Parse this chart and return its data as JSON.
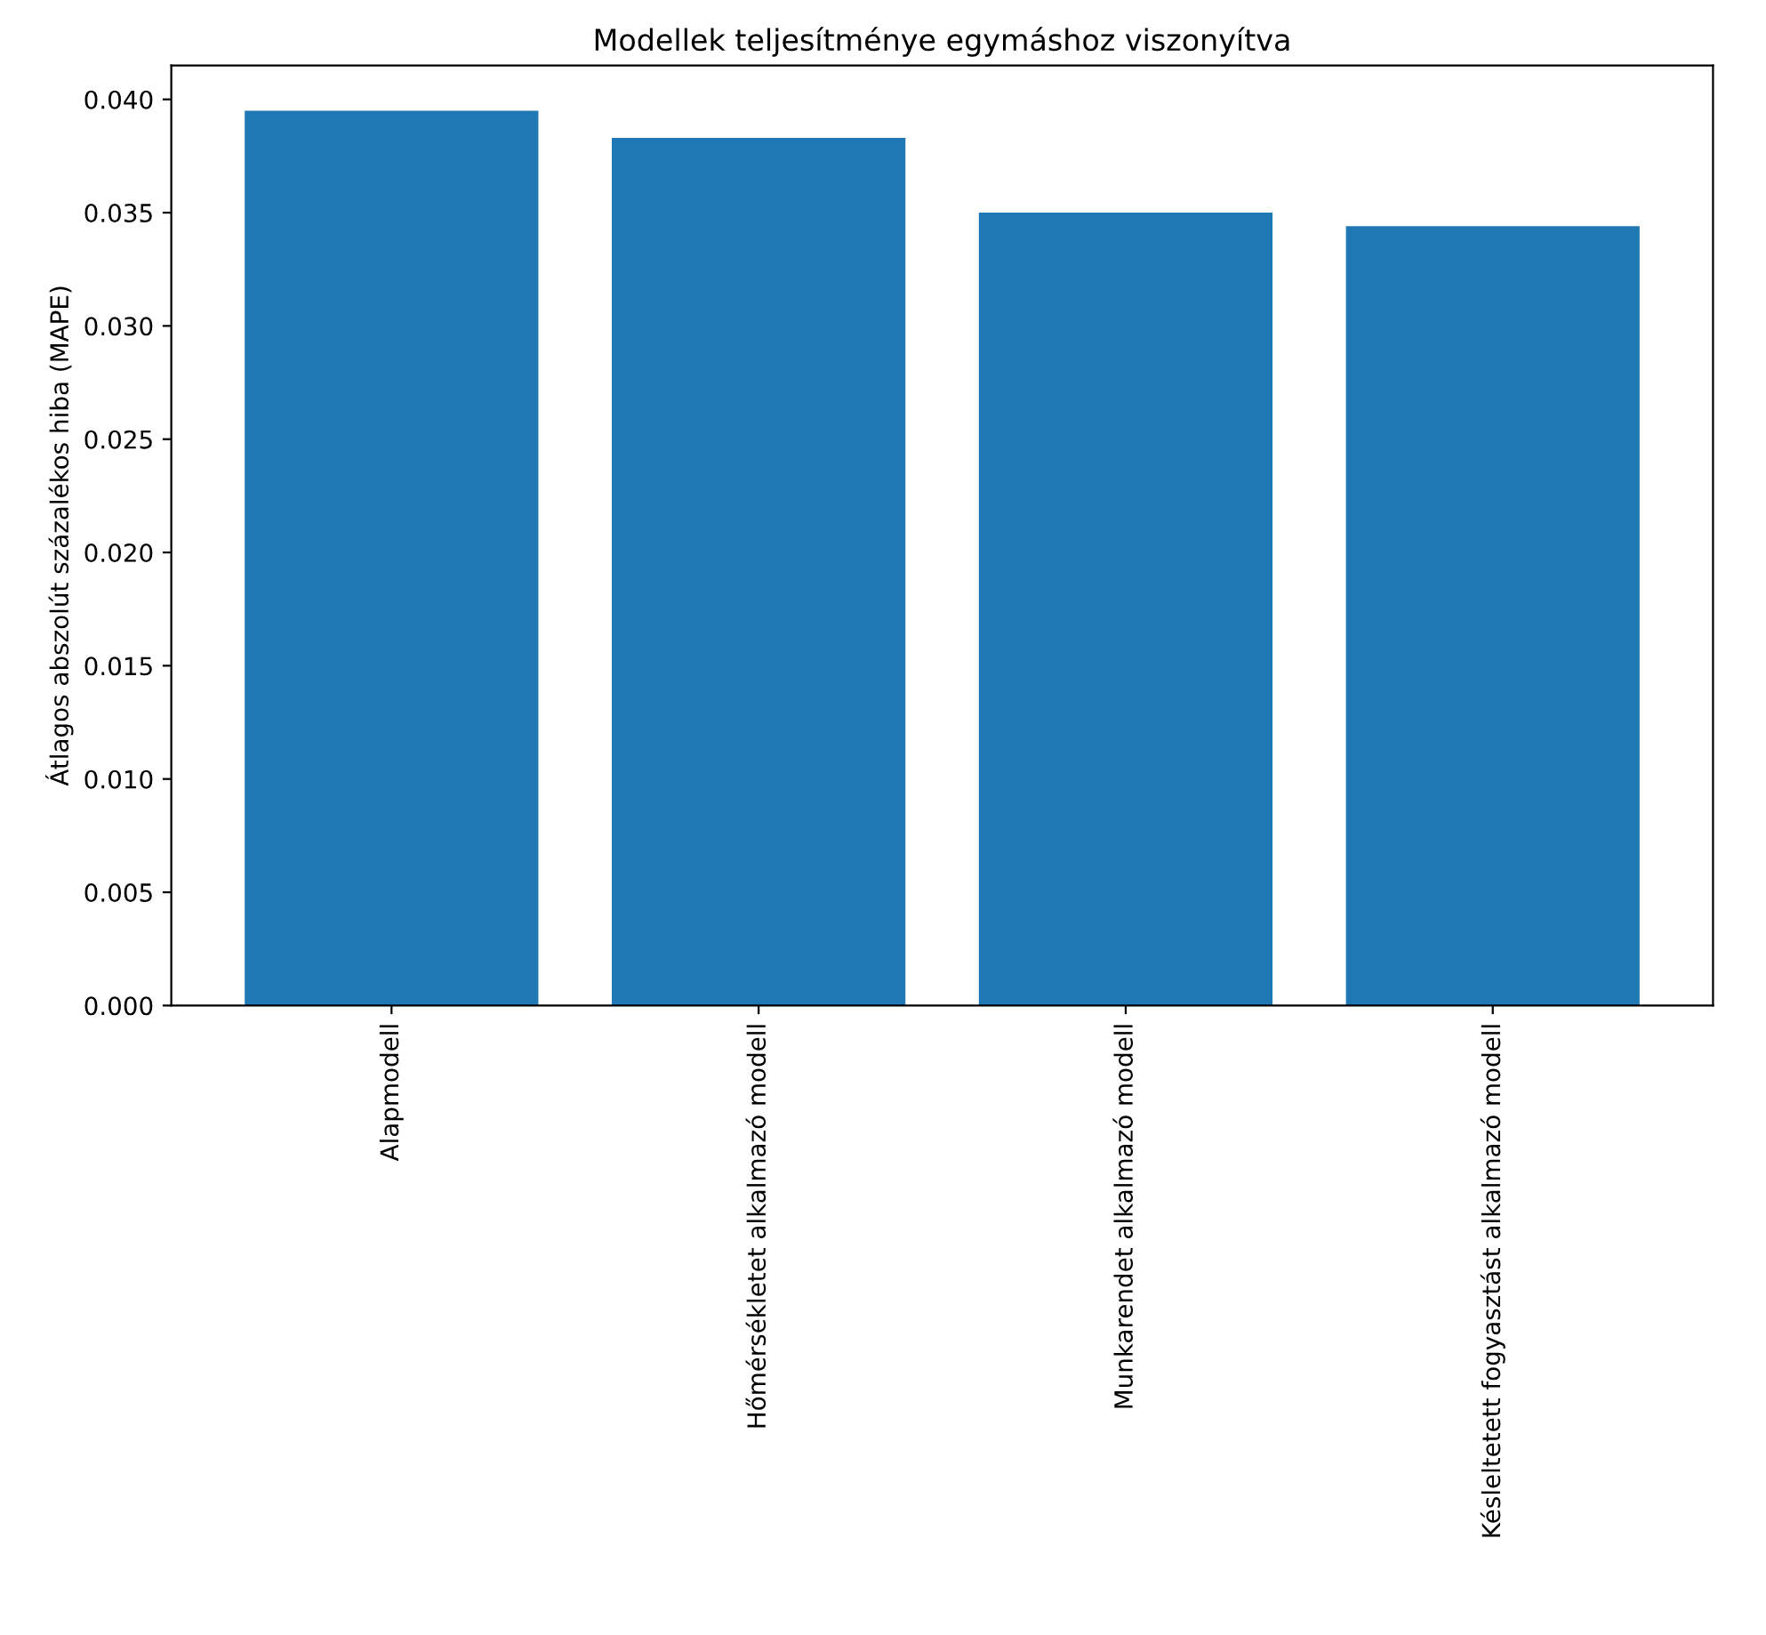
{
  "chart_data": {
    "type": "bar",
    "title": "Modellek teljesítménye egymáshoz viszonyítva",
    "ylabel": "Átlagos abszolút százalékos hiba (MAPE)",
    "categories": [
      "Alapmodell",
      "Hőmérsékletet alkalmazó modell",
      "Munkarendet alkalmazó modell",
      "Késleltetett fogyasztást alkalmazó modell"
    ],
    "values": [
      0.0395,
      0.0383,
      0.035,
      0.0344
    ],
    "color": "#1f77b4",
    "ylim": [
      0,
      0.0415
    ],
    "yticks": [
      {
        "value": 0,
        "label": "0.000"
      },
      {
        "value": 0.005,
        "label": "0.005"
      },
      {
        "value": 0.01,
        "label": "0.010"
      },
      {
        "value": 0.015,
        "label": "0.015"
      },
      {
        "value": 0.02,
        "label": "0.020"
      },
      {
        "value": 0.025,
        "label": "0.025"
      },
      {
        "value": 0.03,
        "label": "0.030"
      },
      {
        "value": 0.035,
        "label": "0.035"
      },
      {
        "value": 0.04,
        "label": "0.040"
      }
    ],
    "grid": false,
    "legend": false
  }
}
